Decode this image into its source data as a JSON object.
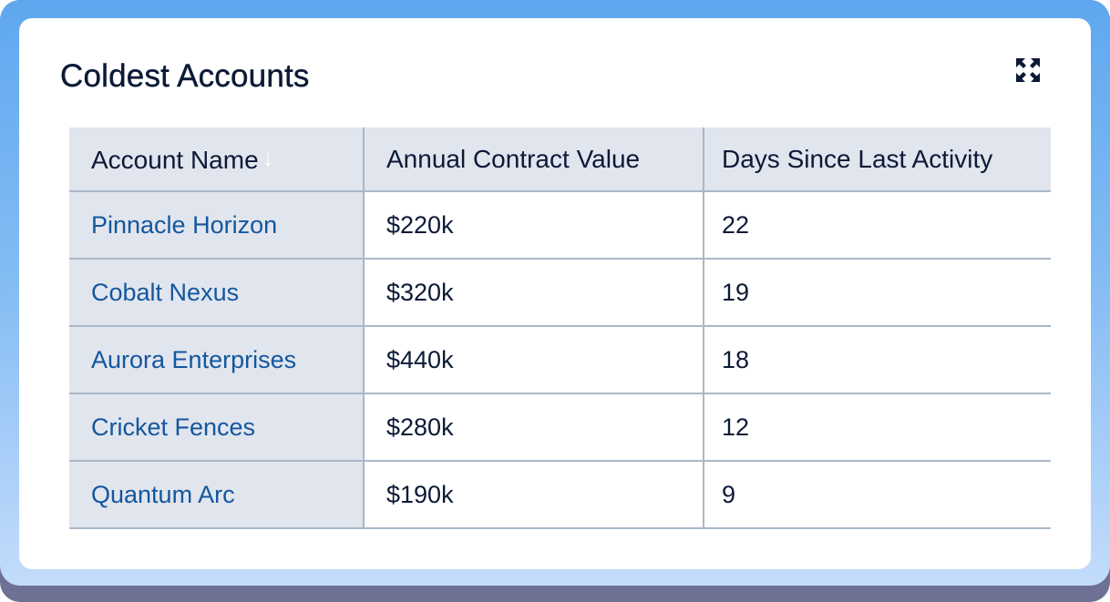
{
  "widget": {
    "title": "Coldest Accounts",
    "expand_icon": "expand-arrows-icon"
  },
  "table": {
    "columns": [
      "Account Name",
      "Annual Contract Value",
      "Days Since Last Activity"
    ],
    "sort_icon": "arrow-down-icon",
    "rows": [
      {
        "name": "Pinnacle Horizon",
        "acv": "$220k",
        "days": "22"
      },
      {
        "name": "Cobalt Nexus",
        "acv": "$320k",
        "days": "19"
      },
      {
        "name": "Aurora Enterprises",
        "acv": "$440k",
        "days": "18"
      },
      {
        "name": "Cricket Fences",
        "acv": "$280k",
        "days": "12"
      },
      {
        "name": "Quantum Arc",
        "acv": "$190k",
        "days": "9"
      }
    ]
  },
  "colors": {
    "title_text": "#0c1a36",
    "link": "#13579e",
    "header_bg": "#e1e5ee",
    "border": "#a9b7c8",
    "frame_gradient_top": "#5ea8ef",
    "frame_gradient_bottom": "#c3dcfb"
  }
}
